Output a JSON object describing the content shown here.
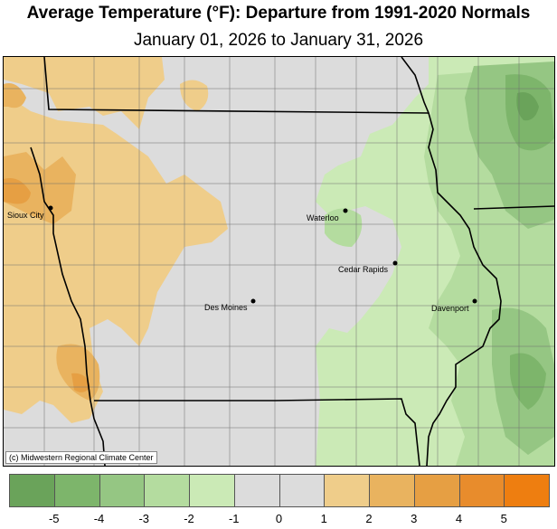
{
  "title": "Average Temperature (°F): Departure from 1991-2020 Normals",
  "subtitle": "January 01, 2026 to January 31, 2026",
  "credit": "(c) Midwestern Regional Climate Center",
  "cities": [
    {
      "name": "Sioux City"
    },
    {
      "name": "Waterloo"
    },
    {
      "name": "Cedar Rapids"
    },
    {
      "name": "Des Moines"
    },
    {
      "name": "Davenport"
    }
  ],
  "legend": {
    "colors": [
      "#6aa35a",
      "#7db56b",
      "#95c683",
      "#b4dc9f",
      "#cbeab6",
      "#dcdcdc",
      "#dcdcdc",
      "#efcd8a",
      "#e9b35f",
      "#e69f43",
      "#e88c2c",
      "#ee7e10"
    ],
    "tick_labels": [
      "-5",
      "-4",
      "-3",
      "-2",
      "-1",
      "0",
      "1",
      "2",
      "3",
      "4",
      "5"
    ]
  },
  "colors": {
    "near_normal": "#dcdcdc",
    "warm": "#ebbb6b",
    "cool": "#b4dc9f"
  }
}
